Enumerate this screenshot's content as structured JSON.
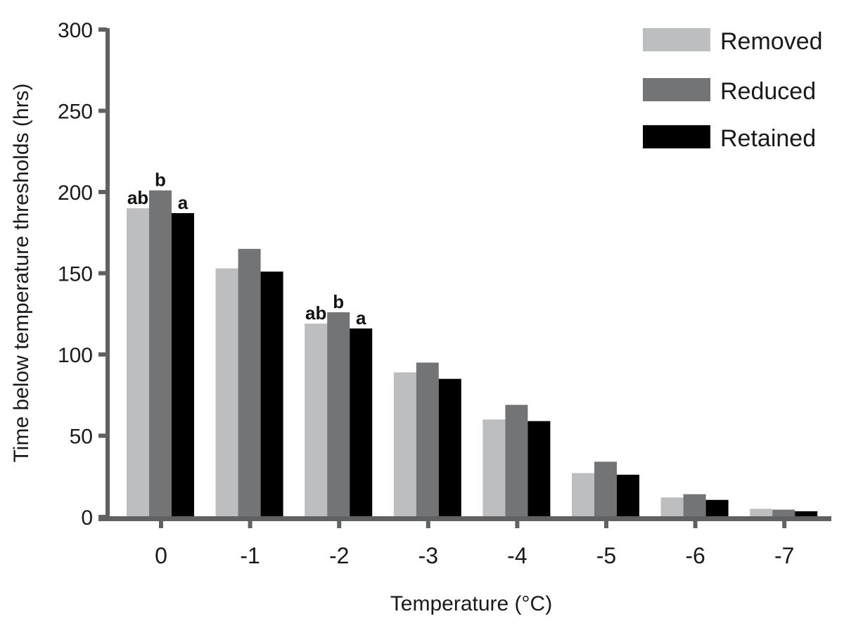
{
  "chart_data": {
    "type": "bar",
    "title": "",
    "xlabel": "Temperature (°C)",
    "ylabel": "Time below temperature thresholds (hrs)",
    "categories": [
      "0",
      "-1",
      "-2",
      "-3",
      "-4",
      "-5",
      "-6",
      "-7"
    ],
    "series": [
      {
        "name": "Removed",
        "color": "#bcbebf",
        "values": [
          190,
          153,
          119,
          89,
          60,
          27,
          12,
          5
        ]
      },
      {
        "name": "Reduced",
        "color": "#727476",
        "values": [
          201,
          165,
          126,
          95,
          69,
          34,
          14,
          4.5
        ]
      },
      {
        "name": "Retained",
        "color": "#000000",
        "values": [
          187,
          151,
          116,
          85,
          59,
          26,
          10.5,
          3.5
        ]
      }
    ],
    "ylim": [
      0,
      300
    ],
    "yticks": [
      0,
      50,
      100,
      150,
      200,
      250,
      300
    ],
    "grid": false,
    "legend_position": "top-right",
    "annotations": [
      {
        "category": "0",
        "series": "Removed",
        "text": "ab"
      },
      {
        "category": "0",
        "series": "Reduced",
        "text": "b"
      },
      {
        "category": "0",
        "series": "Retained",
        "text": "a"
      },
      {
        "category": "-2",
        "series": "Removed",
        "text": "ab"
      },
      {
        "category": "-2",
        "series": "Reduced",
        "text": "b"
      },
      {
        "category": "-2",
        "series": "Retained",
        "text": "a"
      }
    ]
  },
  "legend": {
    "items": [
      {
        "label": "Removed",
        "color": "#bcbebf"
      },
      {
        "label": "Reduced",
        "color": "#727476"
      },
      {
        "label": "Retained",
        "color": "#000000"
      }
    ]
  },
  "axes": {
    "x_title": "Temperature (°C)",
    "y_title": "Time below temperature thresholds (hrs)",
    "axis_color": "#5f6163"
  }
}
